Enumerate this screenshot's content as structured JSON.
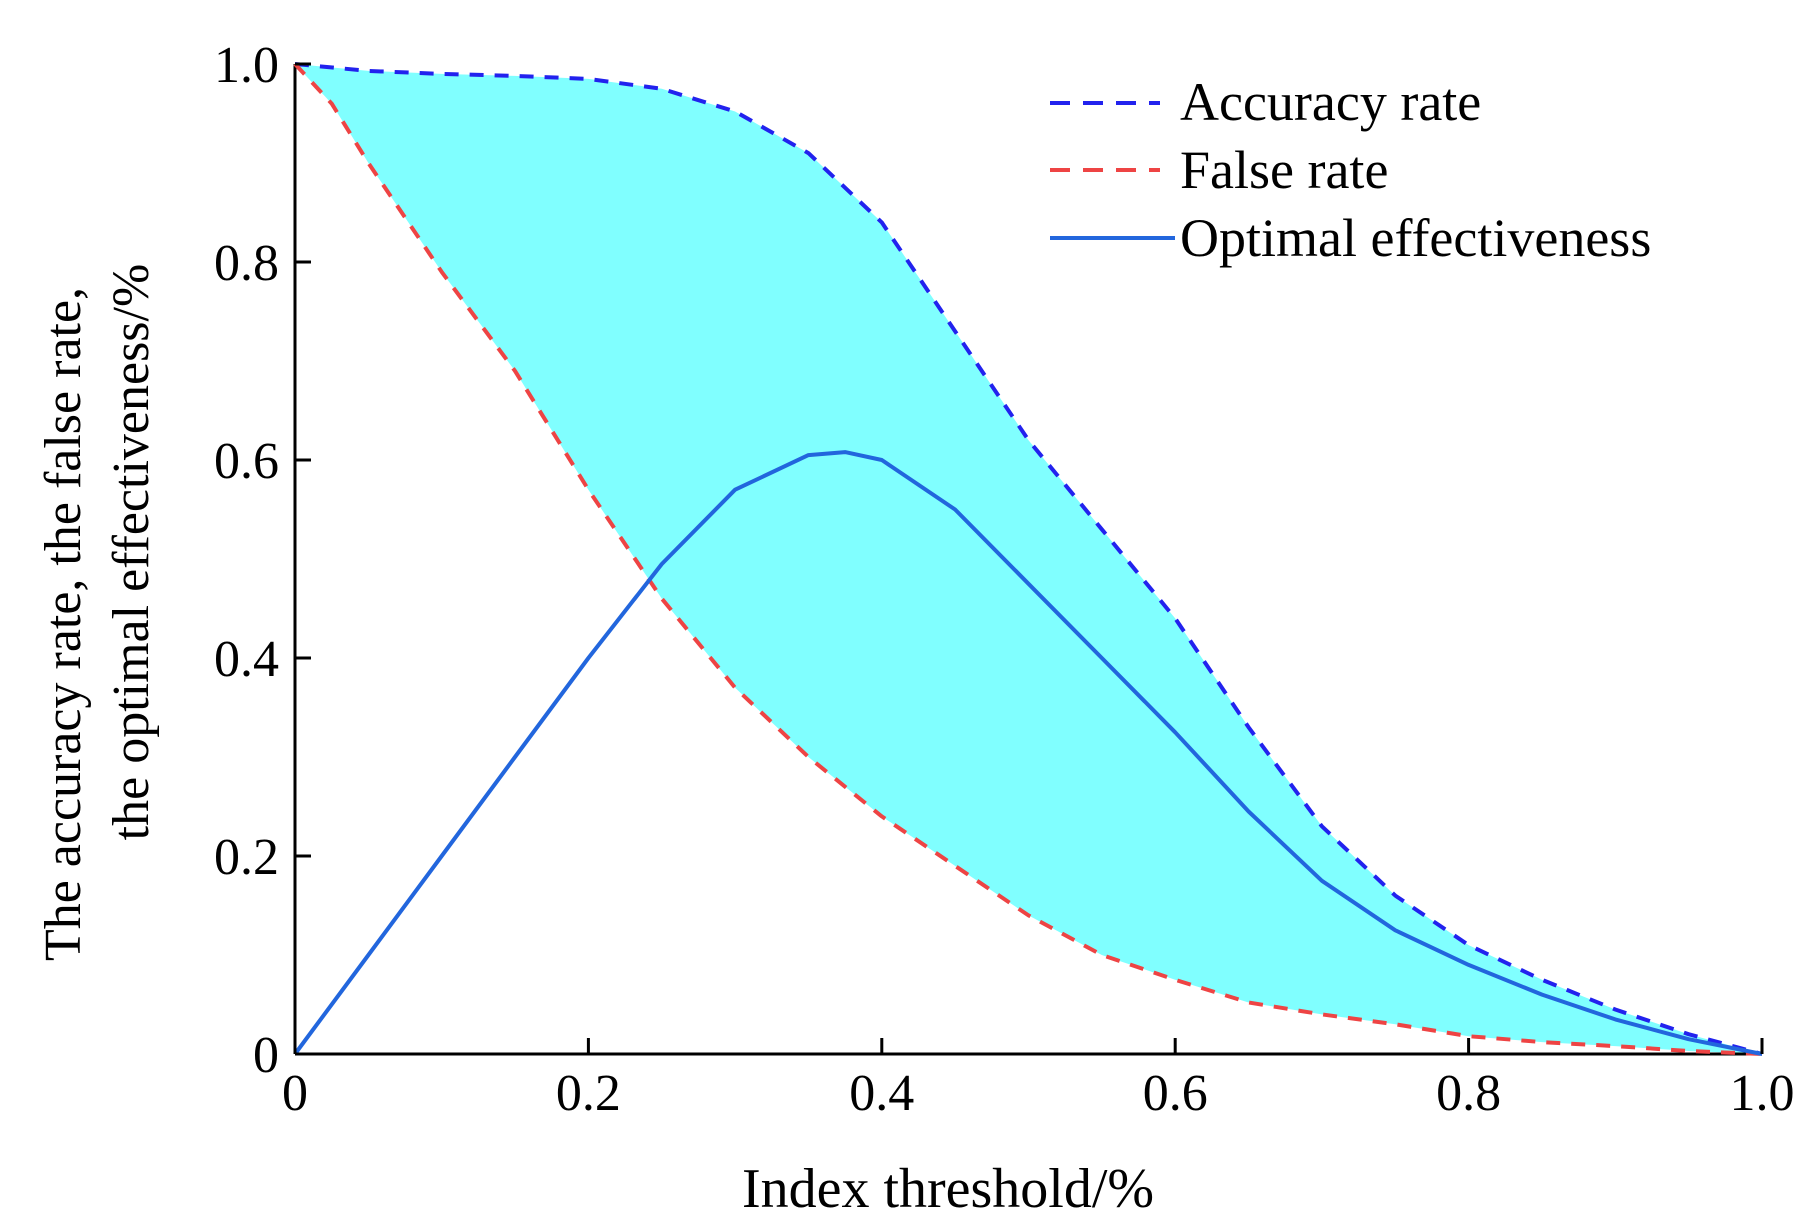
{
  "chart_data": {
    "type": "line",
    "title": "",
    "xlabel": "Index threshold/%",
    "ylabel_line1": "The accuracy rate, the false rate,",
    "ylabel_line2": "the optimal effectiveness/%",
    "xlim": [
      0,
      1
    ],
    "ylim": [
      0,
      1
    ],
    "xticks": [
      {
        "value": 0,
        "label": "0"
      },
      {
        "value": 0.2,
        "label": "0.2"
      },
      {
        "value": 0.4,
        "label": "0.4"
      },
      {
        "value": 0.6,
        "label": "0.6"
      },
      {
        "value": 0.8,
        "label": "0.8"
      },
      {
        "value": 1.0,
        "label": "1.0"
      }
    ],
    "yticks": [
      {
        "value": 0,
        "label": "0"
      },
      {
        "value": 0.2,
        "label": "0.2"
      },
      {
        "value": 0.4,
        "label": "0.4"
      },
      {
        "value": 0.6,
        "label": "0.6"
      },
      {
        "value": 0.8,
        "label": "0.8"
      },
      {
        "value": 1.0,
        "label": "1.0"
      }
    ],
    "grid": false,
    "legend_position": "top-right",
    "fill_between": {
      "upper": "Accuracy rate",
      "lower": "False rate",
      "color": "#80FFFF"
    },
    "series": [
      {
        "name": "Accuracy rate",
        "style": "dashed",
        "color": "#2222EE",
        "x": [
          0,
          0.05,
          0.1,
          0.15,
          0.2,
          0.25,
          0.3,
          0.35,
          0.4,
          0.45,
          0.5,
          0.55,
          0.6,
          0.65,
          0.7,
          0.75,
          0.8,
          0.85,
          0.9,
          0.95,
          1.0
        ],
        "y": [
          1.0,
          0.993,
          0.99,
          0.988,
          0.985,
          0.975,
          0.952,
          0.91,
          0.84,
          0.73,
          0.62,
          0.53,
          0.44,
          0.33,
          0.23,
          0.16,
          0.11,
          0.075,
          0.045,
          0.02,
          0.0
        ]
      },
      {
        "name": "False rate",
        "style": "dashed",
        "color": "#EE4444",
        "x": [
          0,
          0.025,
          0.05,
          0.1,
          0.15,
          0.2,
          0.25,
          0.3,
          0.35,
          0.4,
          0.45,
          0.5,
          0.55,
          0.6,
          0.65,
          0.7,
          0.75,
          0.8,
          0.85,
          0.9,
          0.95,
          1.0
        ],
        "y": [
          1.0,
          0.96,
          0.9,
          0.79,
          0.69,
          0.57,
          0.46,
          0.37,
          0.3,
          0.24,
          0.19,
          0.14,
          0.1,
          0.075,
          0.052,
          0.04,
          0.03,
          0.018,
          0.012,
          0.008,
          0.003,
          0.0
        ]
      },
      {
        "name": "Optimal effectiveness",
        "style": "solid",
        "color": "#2266DD",
        "x": [
          0,
          0.05,
          0.1,
          0.15,
          0.2,
          0.25,
          0.3,
          0.35,
          0.375,
          0.4,
          0.45,
          0.5,
          0.55,
          0.6,
          0.65,
          0.7,
          0.75,
          0.8,
          0.85,
          0.9,
          0.95,
          1.0
        ],
        "y": [
          0,
          0.1,
          0.2,
          0.3,
          0.4,
          0.495,
          0.57,
          0.605,
          0.608,
          0.6,
          0.55,
          0.475,
          0.4,
          0.325,
          0.245,
          0.175,
          0.125,
          0.09,
          0.06,
          0.035,
          0.015,
          0.0
        ]
      }
    ]
  }
}
